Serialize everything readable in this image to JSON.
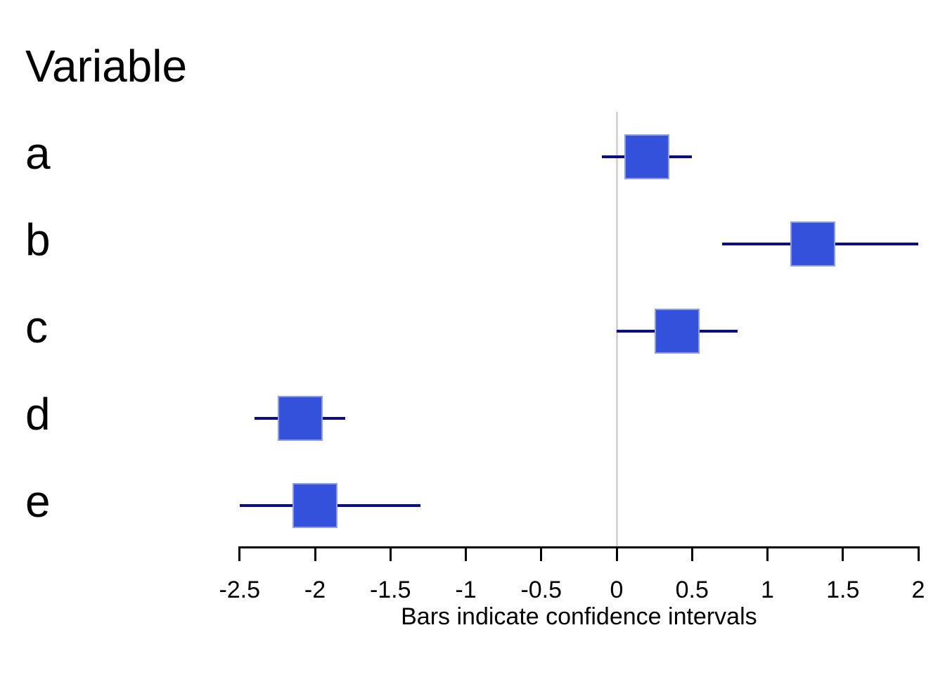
{
  "chart_data": {
    "type": "scatter",
    "subtype": "forest-plot-confidence-intervals",
    "title": "Variable",
    "xlabel": "Bars indicate confidence intervals",
    "categories": [
      "a",
      "b",
      "c",
      "d",
      "e"
    ],
    "series": [
      {
        "name": "estimates",
        "points": [
          {
            "label": "a",
            "estimate": 0.2,
            "ci_low": -0.1,
            "ci_high": 0.5
          },
          {
            "label": "b",
            "estimate": 1.3,
            "ci_low": 0.7,
            "ci_high": 2.0
          },
          {
            "label": "c",
            "estimate": 0.4,
            "ci_low": 0.0,
            "ci_high": 0.8
          },
          {
            "label": "d",
            "estimate": -2.1,
            "ci_low": -2.4,
            "ci_high": -1.8
          },
          {
            "label": "e",
            "estimate": -2.0,
            "ci_low": -2.5,
            "ci_high": -1.3
          }
        ]
      }
    ],
    "xlim": [
      -2.5,
      2
    ],
    "x_tick_values": [
      -2.5,
      -2,
      -1.5,
      -1,
      -0.5,
      0,
      0.5,
      1,
      1.5,
      2
    ],
    "x_tick_labels": [
      "-2.5",
      "-2",
      "-1.5",
      "-1",
      "-0.5",
      "0",
      "0.5",
      "1",
      "1.5",
      "2"
    ],
    "reference_line_x": 0,
    "grid": false,
    "legend": "none",
    "colors": {
      "marker_fill": "#3351DB",
      "marker_border": "#8E9BE7",
      "whisker": "#0B0B8F",
      "reference_line": "#D4D4D4",
      "axis": "#000000",
      "text": "#000000",
      "background": "#FFFFFF"
    }
  }
}
